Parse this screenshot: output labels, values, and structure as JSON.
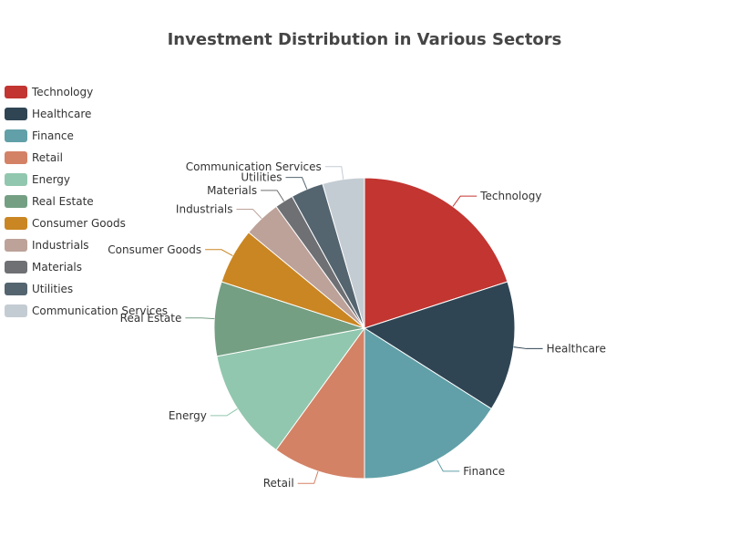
{
  "chart_data": {
    "type": "pie",
    "title": "Investment Distribution in Various Sectors",
    "legend_position": "left",
    "categories": [
      "Technology",
      "Healthcare",
      "Finance",
      "Retail",
      "Energy",
      "Real Estate",
      "Consumer Goods",
      "Industrials",
      "Materials",
      "Utilities",
      "Communication Services"
    ],
    "values": [
      20,
      14,
      16,
      10,
      12,
      8,
      6,
      4,
      2,
      3.5,
      4.5
    ],
    "colors": [
      "#c23531",
      "#2f4554",
      "#61a0a8",
      "#d48265",
      "#91c7ae",
      "#749f83",
      "#ca8622",
      "#bda29a",
      "#6e7074",
      "#546570",
      "#c4ccd3"
    ]
  }
}
